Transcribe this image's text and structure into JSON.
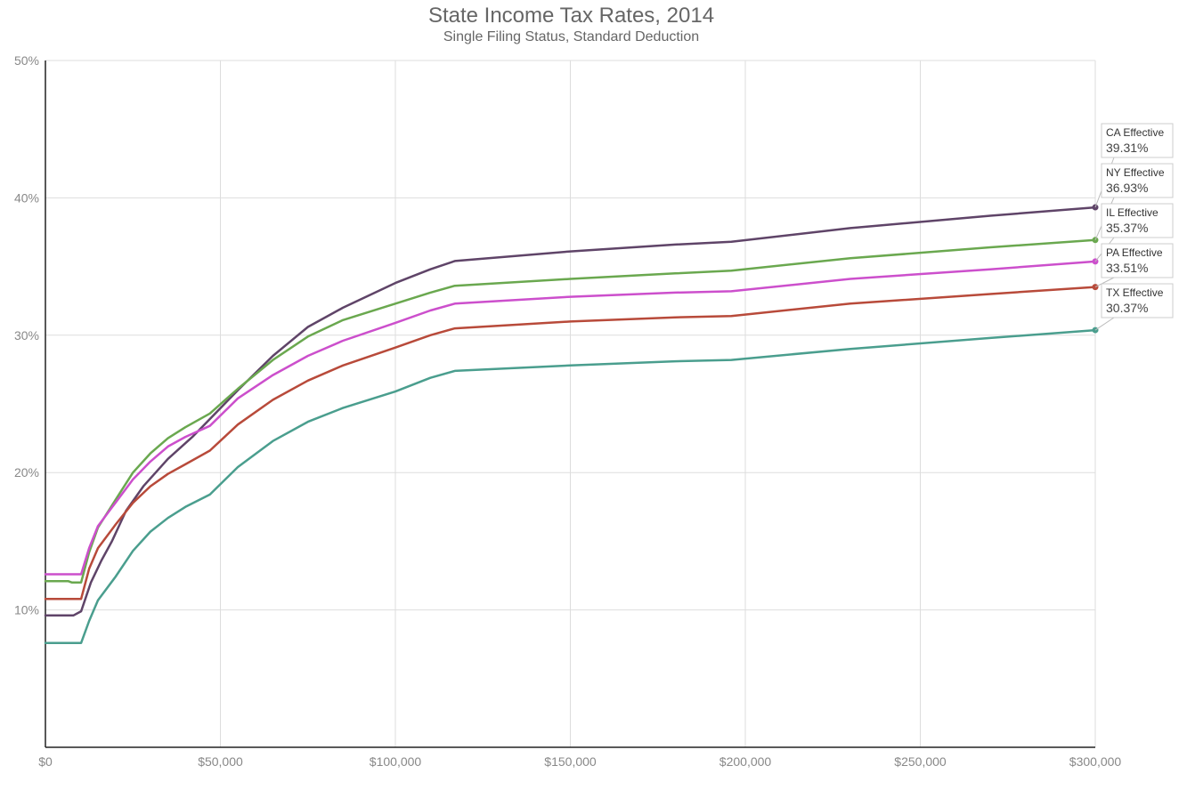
{
  "chart_data": {
    "type": "line",
    "title": "State Income Tax Rates, 2014",
    "subtitle": "Single Filing Status, Standard Deduction",
    "xlabel": "",
    "ylabel": "",
    "xlim": [
      0,
      300000
    ],
    "ylim": [
      0,
      50
    ],
    "x_ticks": [
      0,
      50000,
      100000,
      150000,
      200000,
      250000,
      300000
    ],
    "x_tick_labels": [
      "$0",
      "$50,000",
      "$100,000",
      "$150,000",
      "$200,000",
      "$250,000",
      "$300,000"
    ],
    "y_ticks": [
      10,
      20,
      30,
      40,
      50
    ],
    "y_tick_labels": [
      "10%",
      "20%",
      "30%",
      "40%",
      "50%"
    ],
    "grid": true,
    "series": [
      {
        "name": "CA Effective",
        "label": "39.31%",
        "color": "#5f4468",
        "x": [
          0,
          8000,
          10200,
          13000,
          16000,
          19000,
          23000,
          28000,
          35000,
          42000,
          47000,
          55000,
          65000,
          75000,
          85000,
          100000,
          110000,
          117000,
          150000,
          180000,
          196000,
          230000,
          270000,
          300000
        ],
        "y": [
          9.6,
          9.6,
          9.9,
          12.0,
          13.6,
          15.0,
          17.2,
          19.0,
          21.0,
          22.6,
          23.9,
          26.0,
          28.5,
          30.6,
          32.0,
          33.8,
          34.8,
          35.4,
          36.1,
          36.6,
          36.8,
          37.8,
          38.7,
          39.31
        ]
      },
      {
        "name": "NY Effective",
        "label": "36.93%",
        "color": "#6aa84f",
        "x": [
          0,
          6500,
          7500,
          10200,
          12500,
          15000,
          20000,
          25000,
          30000,
          35000,
          40000,
          47000,
          55000,
          65000,
          75000,
          85000,
          100000,
          110000,
          117000,
          150000,
          180000,
          196000,
          230000,
          270000,
          300000
        ],
        "y": [
          12.1,
          12.1,
          12.0,
          12.0,
          14.2,
          16.0,
          18.0,
          20.0,
          21.4,
          22.5,
          23.3,
          24.3,
          26.1,
          28.2,
          29.9,
          31.1,
          32.3,
          33.1,
          33.6,
          34.1,
          34.5,
          34.7,
          35.6,
          36.4,
          36.93
        ]
      },
      {
        "name": "IL Effective",
        "label": "35.37%",
        "color": "#cc4fcc",
        "x": [
          0,
          10200,
          12500,
          15000,
          20000,
          25000,
          30000,
          35000,
          40000,
          47000,
          55000,
          65000,
          75000,
          85000,
          100000,
          110000,
          117000,
          150000,
          180000,
          196000,
          230000,
          270000,
          300000
        ],
        "y": [
          12.6,
          12.6,
          14.5,
          16.1,
          17.8,
          19.5,
          20.8,
          21.9,
          22.6,
          23.4,
          25.4,
          27.1,
          28.5,
          29.6,
          30.9,
          31.8,
          32.3,
          32.8,
          33.1,
          33.2,
          34.1,
          34.8,
          35.37
        ]
      },
      {
        "name": "PA Effective",
        "label": "33.51%",
        "color": "#b84a3a",
        "x": [
          0,
          10200,
          12500,
          15000,
          20000,
          25000,
          30000,
          35000,
          40000,
          47000,
          55000,
          65000,
          75000,
          85000,
          100000,
          110000,
          117000,
          150000,
          180000,
          196000,
          230000,
          270000,
          300000
        ],
        "y": [
          10.8,
          10.8,
          13.0,
          14.5,
          16.2,
          17.8,
          19.0,
          19.9,
          20.6,
          21.6,
          23.5,
          25.3,
          26.7,
          27.8,
          29.1,
          30.0,
          30.5,
          31.0,
          31.3,
          31.4,
          32.3,
          33.0,
          33.51
        ]
      },
      {
        "name": "TX Effective",
        "label": "30.37%",
        "color": "#4a9e8e",
        "x": [
          0,
          10200,
          12500,
          15000,
          20000,
          25000,
          30000,
          35000,
          40000,
          47000,
          55000,
          65000,
          75000,
          85000,
          100000,
          110000,
          117000,
          150000,
          180000,
          196000,
          230000,
          270000,
          300000
        ],
        "y": [
          7.6,
          7.6,
          9.2,
          10.7,
          12.4,
          14.3,
          15.7,
          16.7,
          17.5,
          18.4,
          20.4,
          22.3,
          23.7,
          24.7,
          25.9,
          26.9,
          27.4,
          27.8,
          28.1,
          28.2,
          29.0,
          29.8,
          30.37
        ]
      }
    ]
  }
}
